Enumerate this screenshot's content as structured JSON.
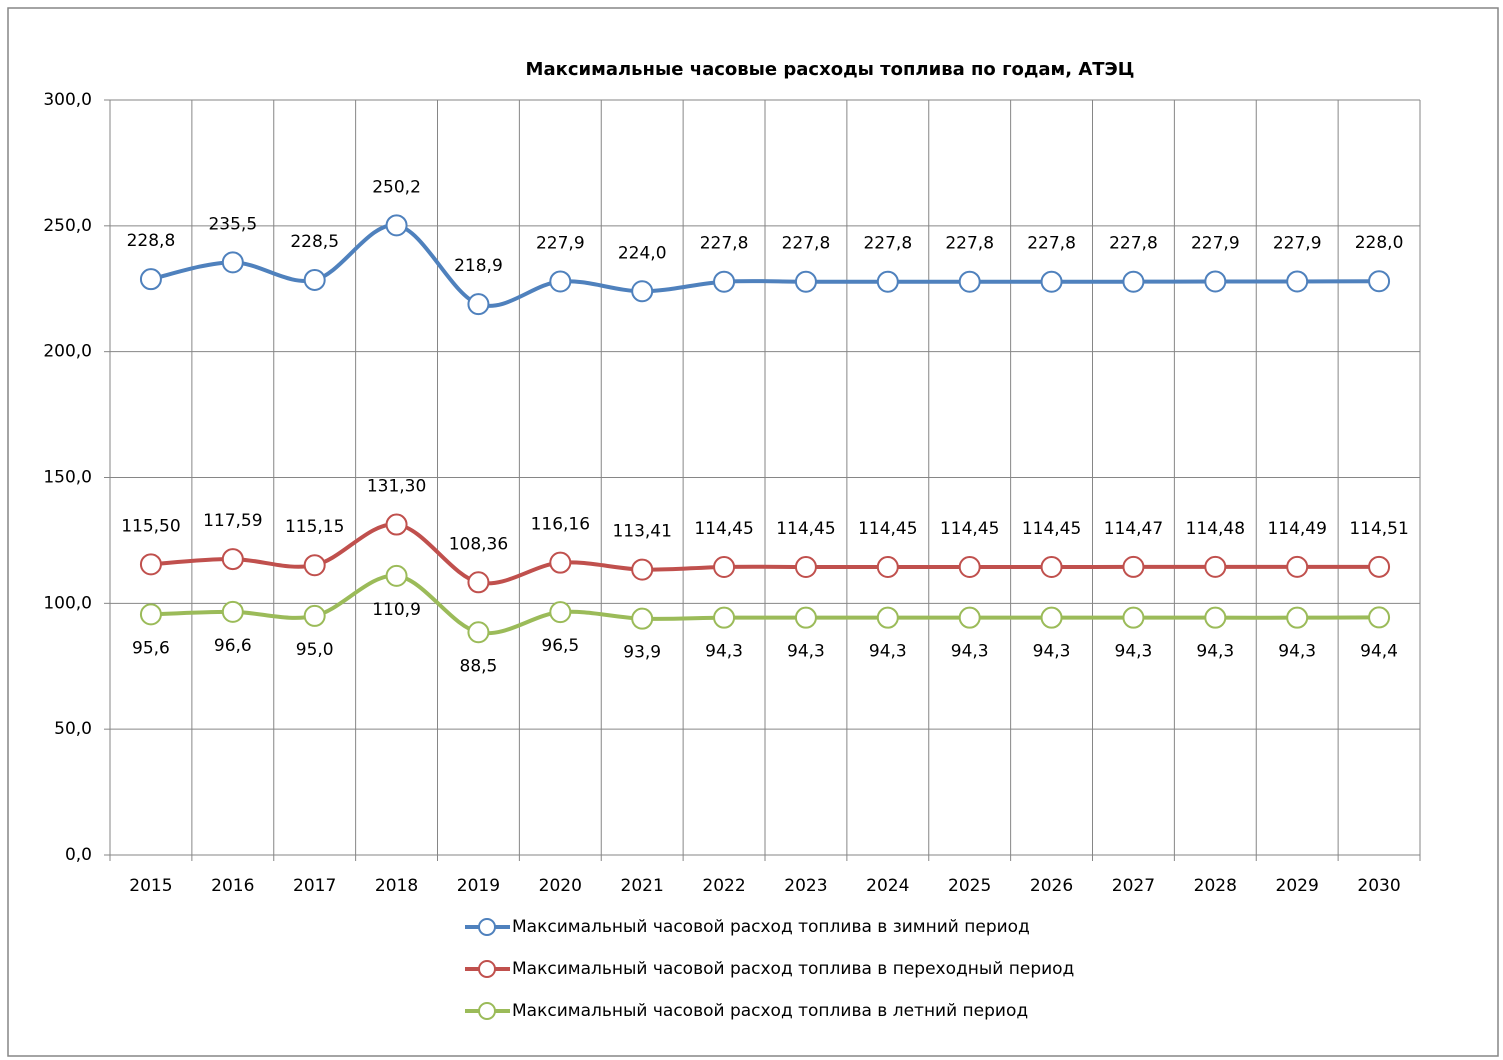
{
  "chart_data": {
    "type": "line",
    "title": "Максимальные часовые расходы топлива по годам, АТЭЦ",
    "categories": [
      "2015",
      "2016",
      "2017",
      "2018",
      "2019",
      "2020",
      "2021",
      "2022",
      "2023",
      "2024",
      "2025",
      "2026",
      "2027",
      "2028",
      "2029",
      "2030"
    ],
    "series": [
      {
        "name": "Максимальный часовой расход топлива в зимний период",
        "color": "#4f81bd",
        "label_position": "above",
        "values": [
          228.8,
          235.5,
          228.5,
          250.2,
          218.9,
          227.9,
          224.0,
          227.8,
          227.8,
          227.8,
          227.8,
          227.8,
          227.8,
          227.9,
          227.9,
          228.0
        ],
        "value_labels": [
          "228,8",
          "235,5",
          "228,5",
          "250,2",
          "218,9",
          "227,9",
          "224,0",
          "227,8",
          "227,8",
          "227,8",
          "227,8",
          "227,8",
          "227,8",
          "227,9",
          "227,9",
          "228,0"
        ]
      },
      {
        "name": "Максимальный часовой расход топлива в переходный период",
        "color": "#c0504d",
        "label_position": "above",
        "values": [
          115.5,
          117.59,
          115.15,
          131.3,
          108.36,
          116.16,
          113.41,
          114.45,
          114.45,
          114.45,
          114.45,
          114.45,
          114.47,
          114.48,
          114.49,
          114.51
        ],
        "value_labels": [
          "115,50",
          "117,59",
          "115,15",
          "131,30",
          "108,36",
          "116,16",
          "113,41",
          "114,45",
          "114,45",
          "114,45",
          "114,45",
          "114,45",
          "114,47",
          "114,48",
          "114,49",
          "114,51"
        ]
      },
      {
        "name": "Максимальный часовой расход топлива в летний период",
        "color": "#9bbb59",
        "label_position": "below",
        "values": [
          95.6,
          96.6,
          95.0,
          110.9,
          88.5,
          96.5,
          93.9,
          94.3,
          94.3,
          94.3,
          94.3,
          94.3,
          94.3,
          94.3,
          94.3,
          94.4
        ],
        "value_labels": [
          "95,6",
          "96,6",
          "95,0",
          "110,9",
          "88,5",
          "96,5",
          "93,9",
          "94,3",
          "94,3",
          "94,3",
          "94,3",
          "94,3",
          "94,3",
          "94,3",
          "94,3",
          "94,4"
        ]
      }
    ],
    "ylim": [
      0,
      300
    ],
    "yticks": [
      {
        "value": 0,
        "label": "0,0"
      },
      {
        "value": 50,
        "label": "50,0"
      },
      {
        "value": 100,
        "label": "100,0"
      },
      {
        "value": 150,
        "label": "150,0"
      },
      {
        "value": 200,
        "label": "200,0"
      },
      {
        "value": 250,
        "label": "250,0"
      },
      {
        "value": 300,
        "label": "300,0"
      }
    ],
    "grid": true,
    "legend": "bottom"
  }
}
